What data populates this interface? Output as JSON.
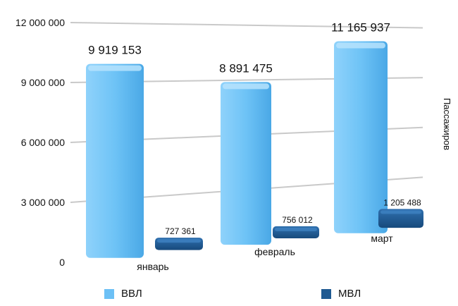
{
  "chart_data": {
    "type": "bar",
    "categories": [
      "январь",
      "февраль",
      "март"
    ],
    "series": [
      {
        "name": "ВВЛ",
        "values": [
          9919153,
          8891475,
          11165937
        ],
        "labels": [
          "9 919 153",
          "8 891 475",
          "11 165 937"
        ],
        "color": "#6cc0f5"
      },
      {
        "name": "МВЛ",
        "values": [
          727361,
          756012,
          1205488
        ],
        "labels": [
          "727 361",
          "756 012",
          "1 205 488"
        ],
        "color": "#1f5a92"
      }
    ],
    "ylabel": "Пассажиров",
    "ylim": [
      0,
      12000000
    ],
    "yticks": [
      0,
      3000000,
      6000000,
      9000000,
      12000000
    ],
    "ytick_labels": [
      "0",
      "3 000 000",
      "6 000 000",
      "9 000 000",
      "12 000 000"
    ],
    "grid": true,
    "legend_position": "bottom"
  }
}
